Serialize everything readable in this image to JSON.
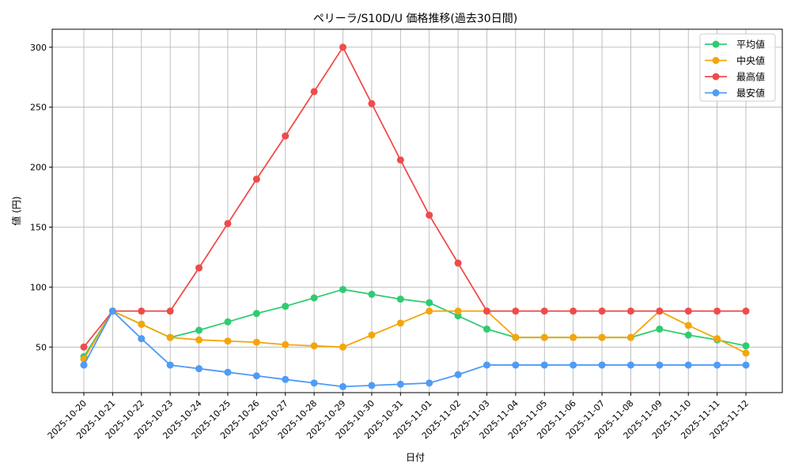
{
  "chart_data": {
    "type": "line",
    "title": "ペリーラ/S10D/U 価格推移(過去30日間)",
    "xlabel": "日付",
    "ylabel": "値 (円)",
    "categories": [
      "2025-10-20",
      "2025-10-21",
      "2025-10-22",
      "2025-10-23",
      "2025-10-24",
      "2025-10-25",
      "2025-10-26",
      "2025-10-27",
      "2025-10-28",
      "2025-10-29",
      "2025-10-30",
      "2025-10-31",
      "2025-11-01",
      "2025-11-02",
      "2025-11-03",
      "2025-11-04",
      "2025-11-05",
      "2025-11-06",
      "2025-11-07",
      "2025-11-08",
      "2025-11-09",
      "2025-11-10",
      "2025-11-11",
      "2025-11-12"
    ],
    "ylim": [
      12,
      315
    ],
    "yticks": [
      50,
      100,
      150,
      200,
      250,
      300
    ],
    "grid": true,
    "legend_position": "top-right",
    "series": [
      {
        "name": "平均値",
        "color": "#2ecc71",
        "values": [
          42,
          80,
          69,
          58,
          64,
          71,
          78,
          84,
          91,
          98,
          94,
          90,
          87,
          76,
          65,
          58,
          58,
          58,
          58,
          58,
          65,
          60,
          56,
          51
        ]
      },
      {
        "name": "中央値",
        "color": "#f5a50a",
        "values": [
          40,
          80,
          69,
          58,
          56,
          55,
          54,
          52,
          51,
          50,
          60,
          70,
          80,
          80,
          80,
          58,
          58,
          58,
          58,
          58,
          80,
          68,
          57,
          45
        ]
      },
      {
        "name": "最高値",
        "color": "#f04b4b",
        "values": [
          50,
          80,
          80,
          80,
          116,
          153,
          190,
          226,
          263,
          300,
          253,
          206,
          160,
          120,
          80,
          80,
          80,
          80,
          80,
          80,
          80,
          80,
          80,
          80
        ]
      },
      {
        "name": "最安値",
        "color": "#4f9bf5",
        "values": [
          35,
          80,
          57,
          35,
          32,
          29,
          26,
          23,
          20,
          17,
          18,
          19,
          20,
          27,
          35,
          35,
          35,
          35,
          35,
          35,
          35,
          35,
          35,
          35
        ]
      }
    ]
  }
}
